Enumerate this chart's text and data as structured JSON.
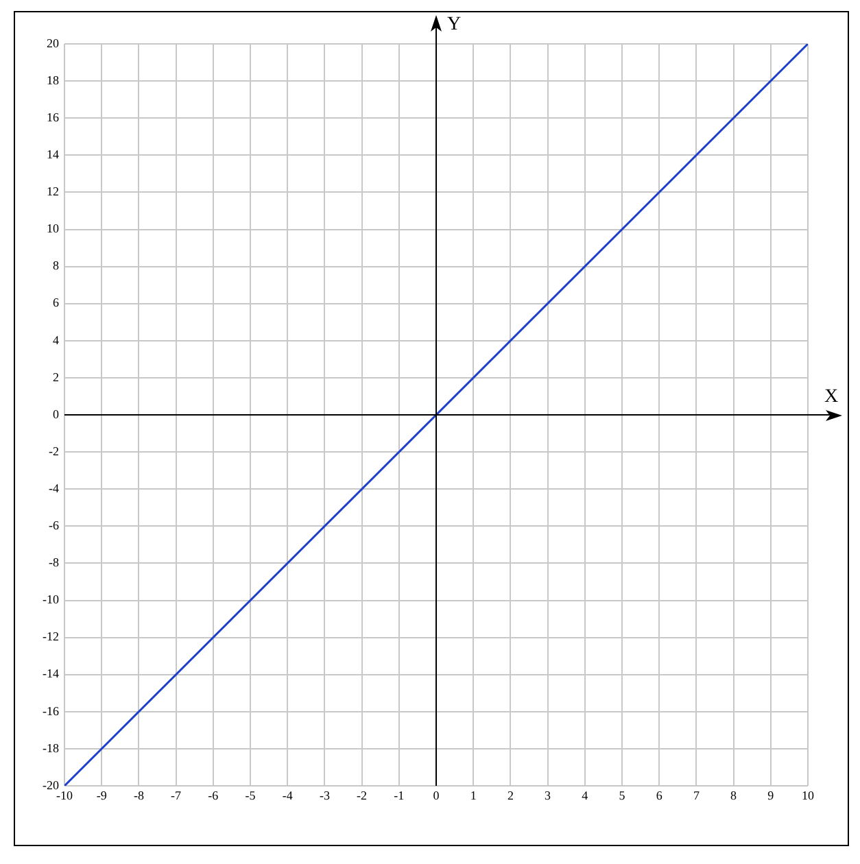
{
  "chart_data": {
    "type": "line",
    "xlabel": "X",
    "ylabel": "Y",
    "x": [
      -10,
      10
    ],
    "series": [
      {
        "color": "#1f3fc8",
        "values": [
          -20,
          20
        ]
      }
    ],
    "xlim": [
      -10,
      10
    ],
    "xticks": [
      -10,
      -9,
      -8,
      -7,
      -6,
      -5,
      -4,
      -3,
      -2,
      -1,
      0,
      1,
      2,
      3,
      4,
      5,
      6,
      7,
      8,
      9,
      10
    ],
    "ylim": [
      -20,
      20
    ],
    "yticks": [
      -20,
      -18,
      -16,
      -14,
      -12,
      -10,
      -8,
      -6,
      -4,
      -2,
      0,
      2,
      4,
      6,
      8,
      10,
      12,
      14,
      16,
      18,
      20
    ],
    "grid": true,
    "legend": false,
    "marker": "none",
    "line_style": "solid"
  }
}
